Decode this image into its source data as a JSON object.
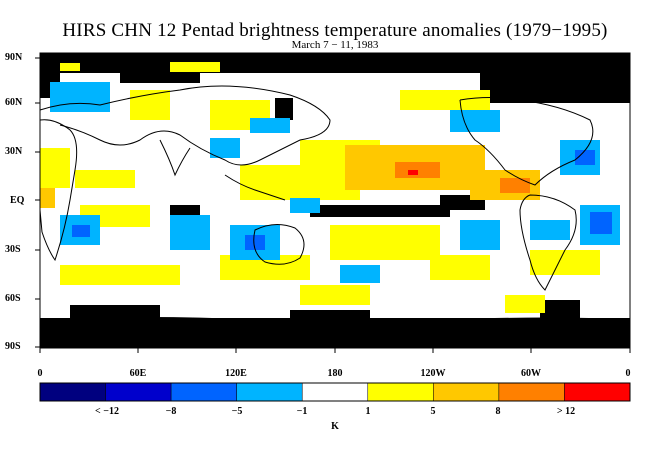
{
  "title": "HIRS CHN 12 Pentad brightness temperature anomalies (1979−1995)",
  "subtitle": "March 7 − 11, 1983",
  "lat_labels": [
    "90N",
    "60N",
    "30N",
    "EQ",
    "30S",
    "60S",
    "90S"
  ],
  "lon_labels": [
    "0",
    "60E",
    "120E",
    "180",
    "120W",
    "60W",
    "0"
  ],
  "legend": {
    "labels": [
      "< −12",
      "−8",
      "−5",
      "−1",
      "1",
      "5",
      "8",
      "> 12"
    ],
    "colors": [
      "#00007f",
      "#0000cc",
      "#0064ff",
      "#00b4ff",
      "#ffffff",
      "#ffff00",
      "#ffc800",
      "#ff8000",
      "#ff0000"
    ],
    "unit": "K"
  },
  "colors": {
    "missing": "#000000",
    "land_outline": "#000000"
  }
}
